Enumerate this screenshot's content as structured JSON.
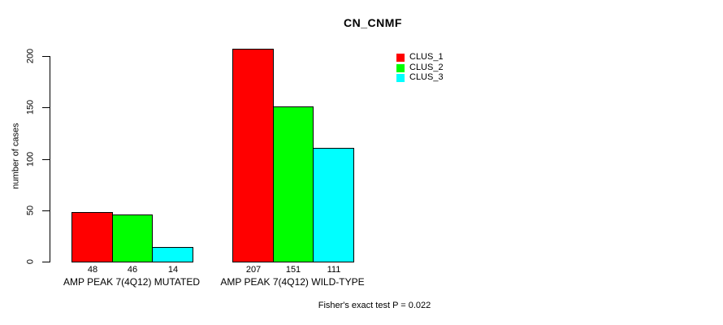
{
  "chart_data": {
    "type": "bar",
    "title": "CN_CNMF",
    "ylabel": "number of cases",
    "xlabel": "",
    "categories": [
      "AMP PEAK 7(4Q12) MUTATED",
      "AMP PEAK 7(4Q12) WILD-TYPE"
    ],
    "series": [
      {
        "name": "CLUS_1",
        "color": "#ff0000",
        "values": [
          48,
          207
        ]
      },
      {
        "name": "CLUS_2",
        "color": "#00ff00",
        "values": [
          46,
          151
        ]
      },
      {
        "name": "CLUS_3",
        "color": "#00ffff",
        "values": [
          14,
          111
        ]
      }
    ],
    "show_value_labels": true,
    "yticks": [
      0,
      50,
      100,
      150,
      200
    ],
    "ylim": [
      0,
      200
    ],
    "grid": false,
    "legend_position": "top-right",
    "bar_border_color": "#000000",
    "background_color": "#ffffff",
    "footnote": "Fisher's exact test P = 0.022"
  }
}
